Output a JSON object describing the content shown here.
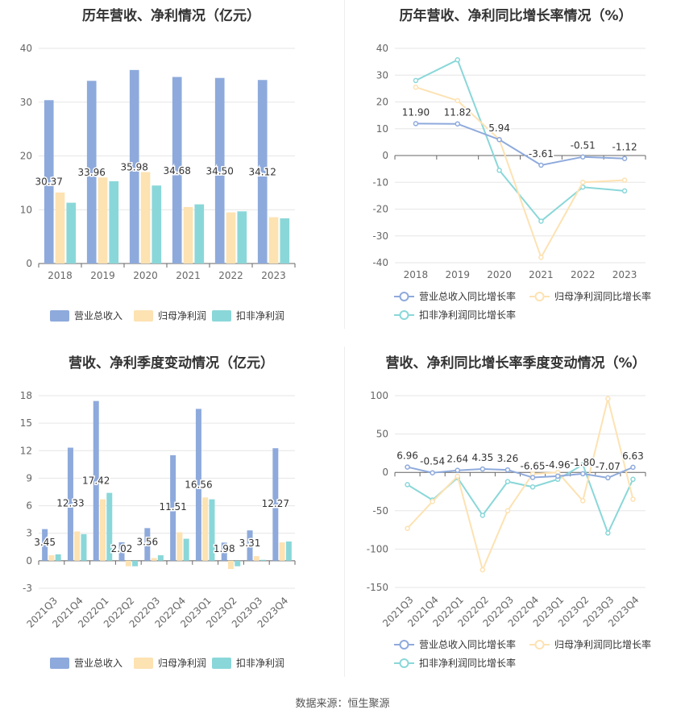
{
  "source": "数据来源：恒生聚源",
  "chart_data": [
    {
      "type": "bar",
      "title": "历年营收、净利情况（亿元）",
      "categories": [
        "2018",
        "2019",
        "2020",
        "2021",
        "2022",
        "2023"
      ],
      "series": [
        {
          "name": "营业总收入",
          "color": "#8eaadc",
          "values": [
            30.37,
            33.96,
            35.98,
            34.68,
            34.5,
            34.12
          ],
          "labels": [
            "30.37",
            "33.96",
            "35.98",
            "34.68",
            "34.50",
            "34.12"
          ]
        },
        {
          "name": "归母净利润",
          "color": "#fde2b2",
          "values": [
            13.2,
            16.0,
            17.0,
            10.5,
            9.5,
            8.6
          ]
        },
        {
          "name": "扣非净利润",
          "color": "#8ad7d9",
          "values": [
            11.3,
            15.3,
            14.5,
            11.0,
            9.7,
            8.4
          ]
        }
      ],
      "ylim": [
        0,
        40
      ],
      "yticks": [
        0,
        10,
        20,
        30,
        40
      ],
      "ytick_labels": [
        "0",
        "10",
        "20",
        "30",
        "40"
      ],
      "legend": "bottom"
    },
    {
      "type": "line",
      "title": "历年营收、净利同比增长率情况（%）",
      "categories": [
        "2018",
        "2019",
        "2020",
        "2021",
        "2022",
        "2023"
      ],
      "series": [
        {
          "name": "营业总收入同比增长率",
          "color": "#8eaadc",
          "values": [
            11.9,
            11.82,
            5.94,
            -3.61,
            -0.51,
            -1.12
          ],
          "labels": [
            "11.90",
            "11.82",
            "5.94",
            "-3.61",
            "-0.51",
            "-1.12"
          ]
        },
        {
          "name": "归母净利润同比增长率",
          "color": "#fde2b2",
          "values": [
            25.5,
            20.5,
            6.0,
            -38.0,
            -10.0,
            -9.2
          ]
        },
        {
          "name": "扣非净利润同比增长率",
          "color": "#8ad7d9",
          "values": [
            28.0,
            35.7,
            -5.5,
            -24.5,
            -11.8,
            -13.2
          ]
        }
      ],
      "ylim": [
        -40,
        40
      ],
      "yticks": [
        -40,
        -30,
        -20,
        -10,
        0,
        10,
        20,
        30,
        40
      ],
      "ytick_labels": [
        "-40",
        "-30",
        "-20",
        "-10",
        "0",
        "10",
        "20",
        "30",
        "40"
      ],
      "legend": "bottom"
    },
    {
      "type": "bar",
      "title": "营收、净利季度变动情况（亿元）",
      "categories": [
        "2021Q3",
        "2021Q4",
        "2022Q1",
        "2022Q2",
        "2022Q3",
        "2022Q4",
        "2023Q1",
        "2023Q2",
        "2023Q3",
        "2023Q4"
      ],
      "series": [
        {
          "name": "营业总收入",
          "color": "#8eaadc",
          "values": [
            3.45,
            12.33,
            17.42,
            2.02,
            3.56,
            11.51,
            16.56,
            1.98,
            3.31,
            12.27
          ],
          "labels": [
            "3.45",
            "12.33",
            "17.42",
            "2.02",
            "3.56",
            "11.51",
            "16.56",
            "1.98",
            "3.31",
            "12.27"
          ]
        },
        {
          "name": "归母净利润",
          "color": "#fde2b2",
          "values": [
            0.6,
            3.2,
            6.7,
            -0.6,
            0.3,
            3.1,
            6.9,
            -0.9,
            0.5,
            2.0
          ]
        },
        {
          "name": "扣非净利润",
          "color": "#8ad7d9",
          "values": [
            0.7,
            2.9,
            7.4,
            -0.6,
            0.6,
            2.4,
            6.7,
            -0.6,
            0.1,
            2.1
          ]
        }
      ],
      "ylim": [
        -3,
        18
      ],
      "yticks": [
        -3,
        0,
        3,
        6,
        9,
        12,
        15,
        18
      ],
      "ytick_labels": [
        "-3",
        "0",
        "3",
        "6",
        "9",
        "12",
        "15",
        "18"
      ],
      "legend": "bottom"
    },
    {
      "type": "line",
      "title": "营收、净利同比增长率季度变动情况（%）",
      "categories": [
        "2021Q3",
        "2021Q4",
        "2022Q1",
        "2022Q2",
        "2022Q3",
        "2022Q4",
        "2023Q1",
        "2023Q2",
        "2023Q3",
        "2023Q4"
      ],
      "series": [
        {
          "name": "营业总收入同比增长率",
          "color": "#8eaadc",
          "values": [
            6.96,
            -0.54,
            2.64,
            4.35,
            3.26,
            -6.65,
            -4.96,
            -1.8,
            -7.07,
            6.63
          ],
          "labels": [
            "6.96",
            "-0.54",
            "2.64",
            "4.35",
            "3.26",
            "-6.65",
            "-4.96",
            "-1.80",
            "-7.07",
            "6.63"
          ]
        },
        {
          "name": "归母净利润同比增长率",
          "color": "#fde2b2",
          "values": [
            -73,
            -38,
            -5,
            -127,
            -50,
            -2,
            0,
            -37,
            96,
            -35
          ]
        },
        {
          "name": "扣非净利润同比增长率",
          "color": "#8ad7d9",
          "values": [
            -16,
            -36,
            -7,
            -56,
            -12,
            -19,
            -9,
            10,
            -79,
            -9
          ]
        }
      ],
      "ylim": [
        -150,
        100
      ],
      "yticks": [
        -150,
        -100,
        -50,
        0,
        50,
        100
      ],
      "ytick_labels": [
        "-150",
        "-100",
        "-50",
        "0",
        "50",
        "100"
      ],
      "legend": "bottom"
    }
  ]
}
